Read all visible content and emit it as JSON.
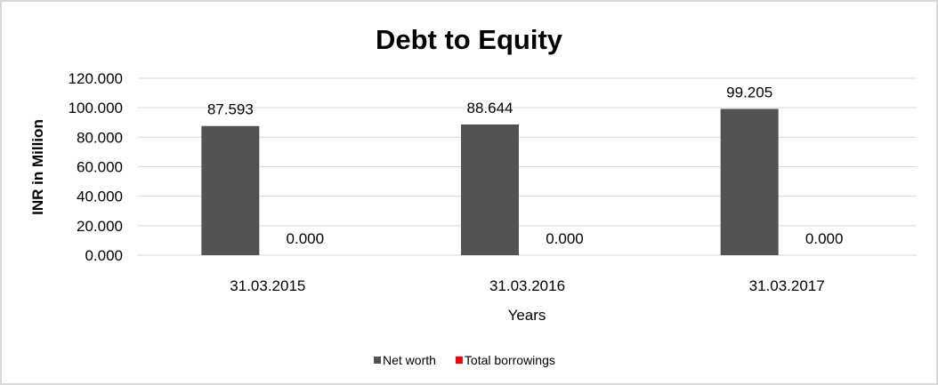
{
  "chart_data": {
    "type": "bar",
    "title": "Debt to Equity",
    "xlabel": "Years",
    "ylabel": "INR in Million",
    "categories": [
      "31.03.2015",
      "31.03.2016",
      "31.03.2017"
    ],
    "series": [
      {
        "name": "Net worth",
        "values": [
          87.593,
          88.644,
          99.205
        ],
        "labels": [
          "87.593",
          "88.644",
          "99.205"
        ],
        "color": "#525252"
      },
      {
        "name": "Total borrowings",
        "values": [
          0,
          0,
          0
        ],
        "labels": [
          "0.000",
          "0.000",
          "0.000"
        ],
        "color": "#ff0000"
      }
    ],
    "yticks": [
      "0.000",
      "20.000",
      "40.000",
      "60.000",
      "80.000",
      "100.000",
      "120.000"
    ],
    "ylim": [
      0,
      120
    ],
    "grid": true,
    "legend": "bottom"
  }
}
